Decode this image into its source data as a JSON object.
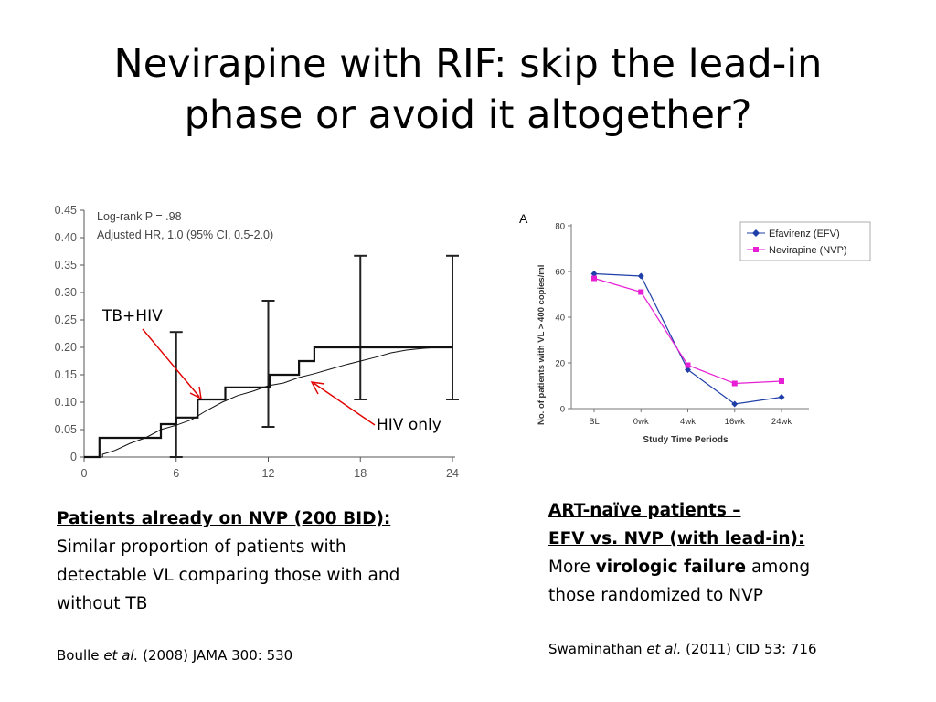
{
  "slide": {
    "title_line1": "Nevirapine with RIF: skip the lead-in",
    "title_line2": "phase or avoid it altogether?"
  },
  "chart_data": [
    {
      "type": "line",
      "stepped": true,
      "stats_line1": "Log-rank P = .98",
      "stats_line2": "Adjusted HR, 1.0 (95% CI, 0.5-2.0)",
      "x_ticks": [
        "0",
        "6",
        "12",
        "18",
        "24"
      ],
      "y_ticks": [
        "0",
        "0.05",
        "0.10",
        "0.15",
        "0.20",
        "0.25",
        "0.30",
        "0.35",
        "0.40",
        "0.45"
      ],
      "xlim": [
        0,
        24
      ],
      "ylim": [
        0,
        0.45
      ],
      "series": [
        {
          "name": "TB+HIV",
          "points": [
            [
              0,
              0
            ],
            [
              1,
              0
            ],
            [
              1,
              0.035
            ],
            [
              5,
              0.035
            ],
            [
              5,
              0.06
            ],
            [
              6,
              0.06
            ],
            [
              6,
              0.072
            ],
            [
              7.4,
              0.072
            ],
            [
              7.4,
              0.105
            ],
            [
              9.2,
              0.105
            ],
            [
              9.2,
              0.127
            ],
            [
              12.1,
              0.127
            ],
            [
              12.1,
              0.15
            ],
            [
              14,
              0.15
            ],
            [
              14,
              0.175
            ],
            [
              15,
              0.175
            ],
            [
              15,
              0.2
            ],
            [
              24,
              0.2
            ]
          ]
        },
        {
          "name": "HIV only",
          "points": [
            [
              0,
              0
            ],
            [
              1.2,
              0
            ],
            [
              1.2,
              0.005
            ],
            [
              2,
              0.012
            ],
            [
              3,
              0.025
            ],
            [
              4,
              0.035
            ],
            [
              5,
              0.05
            ],
            [
              6,
              0.058
            ],
            [
              7,
              0.068
            ],
            [
              8,
              0.085
            ],
            [
              9,
              0.1
            ],
            [
              10,
              0.112
            ],
            [
              11,
              0.12
            ],
            [
              12,
              0.13
            ],
            [
              13,
              0.135
            ],
            [
              14,
              0.145
            ],
            [
              15,
              0.152
            ],
            [
              16,
              0.16
            ],
            [
              17,
              0.168
            ],
            [
              18,
              0.175
            ],
            [
              19,
              0.182
            ],
            [
              20,
              0.19
            ],
            [
              21,
              0.195
            ],
            [
              22,
              0.198
            ],
            [
              23,
              0.2
            ],
            [
              24,
              0.2
            ]
          ]
        }
      ],
      "error_bars": [
        {
          "x": 6,
          "lo": 0,
          "hi": 0.228
        },
        {
          "x": 12,
          "lo": 0.055,
          "hi": 0.285
        },
        {
          "x": 18,
          "lo": 0.105,
          "hi": 0.367
        },
        {
          "x": 24,
          "lo": 0.105,
          "hi": 0.367
        }
      ],
      "annotations": [
        "TB+HIV",
        "HIV only"
      ]
    },
    {
      "type": "line",
      "panel_label": "A",
      "xlabel": "Study Time Periods",
      "ylabel": "No. of patients with VL > 400 copies/ml",
      "categories": [
        "BL",
        "0wk",
        "4wk",
        "16wk",
        "24wk"
      ],
      "y_ticks": [
        "0",
        "20",
        "40",
        "60",
        "80"
      ],
      "ylim": [
        0,
        80
      ],
      "legend_position": "top-right",
      "series": [
        {
          "name": "Efavirenz (EFV)",
          "color": "#1f3fa8",
          "marker": "diamond",
          "values": [
            59,
            58,
            17,
            2,
            5
          ]
        },
        {
          "name": "Nevirapine (NVP)",
          "color": "#e61fd4",
          "marker": "square",
          "values": [
            57,
            51,
            19,
            11,
            12
          ]
        }
      ]
    }
  ],
  "left_caption": {
    "heading": "Patients already on NVP (200 BID):",
    "line1": "Similar proportion of patients with",
    "line2": "detectable VL comparing those with and",
    "line3": "without TB"
  },
  "left_citation": {
    "author": "Boulle ",
    "etal": "et al.",
    "rest": " (2008) JAMA 300: 530"
  },
  "right_caption": {
    "heading1": "ART-naïve patients –",
    "heading2": "EFV vs. NVP (with lead-in):",
    "pre": "More ",
    "bold": "virologic failure",
    "post": " among",
    "line2": "those randomized to NVP"
  },
  "right_citation": {
    "author": "Swaminathan ",
    "etal": "et al.",
    "rest": " (2011) CID 53: 716"
  }
}
